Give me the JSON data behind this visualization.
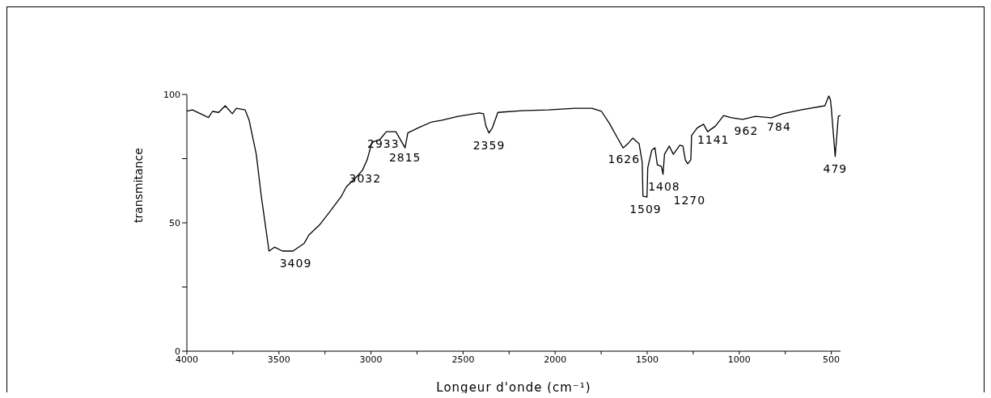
{
  "chart_data": {
    "type": "line",
    "xlabel": "Longeur d'onde (cm⁻¹)",
    "ylabel": "transmitance",
    "xlim": [
      4000,
      450
    ],
    "xticks": [
      4000,
      {
        "value": 3750,
        "label": null
      },
      3500,
      {
        "value": 3250,
        "label": null
      },
      3000,
      {
        "value": 2750,
        "label": null
      },
      2500,
      {
        "value": 2250,
        "label": null
      },
      2000,
      {
        "value": 1750,
        "label": null
      },
      1500,
      {
        "value": 1250,
        "label": null
      },
      1000,
      {
        "value": 750,
        "label": null
      },
      500
    ],
    "ylim": [
      0,
      100
    ],
    "yticks": [
      0,
      {
        "value": 25,
        "label": null
      },
      50,
      {
        "value": 75,
        "label": null
      },
      100
    ],
    "series": [
      {
        "color": "#000000",
        "x": [
          4000,
          3970,
          3926,
          3883,
          3861,
          3827,
          3792,
          3753,
          3731,
          3684,
          3662,
          3623,
          3597,
          3554,
          3524,
          3480,
          3424,
          3363,
          3337,
          3277,
          3220,
          3164,
          3134,
          3077,
          3047,
          3021,
          2995,
          2952,
          2917,
          2865,
          2815,
          2800,
          2744,
          2670,
          2614,
          2527,
          2411,
          2389,
          2376,
          2359,
          2341,
          2311,
          2181,
          2038,
          1891,
          1800,
          1748,
          1705,
          1661,
          1631,
          1605,
          1579,
          1544,
          1527,
          1523,
          1501,
          1497,
          1475,
          1458,
          1445,
          1423,
          1414,
          1406,
          1380,
          1358,
          1323,
          1306,
          1293,
          1280,
          1263,
          1259,
          1228,
          1194,
          1172,
          1129,
          1085,
          1042,
          982,
          912,
          825,
          765,
          665,
          535,
          514,
          505,
          500,
          479,
          462,
          452
        ],
        "values": [
          93.5,
          94,
          92.5,
          91,
          93.4,
          93,
          95.6,
          92.5,
          94.6,
          94,
          90,
          76.7,
          61,
          39,
          40.5,
          39,
          39,
          42,
          45.3,
          49.4,
          54.7,
          60,
          64,
          68,
          70.4,
          74.5,
          81.4,
          82.4,
          85.5,
          85.5,
          79.2,
          85,
          87,
          89.3,
          90,
          91.5,
          92.8,
          92.5,
          87.7,
          85,
          87,
          93,
          93.7,
          94,
          94.6,
          94.6,
          93.4,
          88.7,
          83,
          79.2,
          80.8,
          83,
          80.8,
          73.6,
          60.4,
          60,
          71.4,
          78.3,
          79.2,
          72.6,
          72,
          68.9,
          76.7,
          79.9,
          76.7,
          80.2,
          79.9,
          74.5,
          73,
          74.5,
          84,
          87,
          88.4,
          85.5,
          87.7,
          91.8,
          90.9,
          90.3,
          91.5,
          90.9,
          92.5,
          94,
          95.6,
          99.4,
          98,
          94.6,
          75.8,
          91.5,
          91.8
        ]
      }
    ],
    "annotations": [
      {
        "text": "3409",
        "x": 3409,
        "y": 39
      },
      {
        "text": "3032",
        "x": 3032,
        "y": 72
      },
      {
        "text": "2933",
        "x": 2933,
        "y": 85.5
      },
      {
        "text": "2815",
        "x": 2815,
        "y": 85
      },
      {
        "text": "2359",
        "x": 2359,
        "y": 85
      },
      {
        "text": "1626",
        "x": 1626,
        "y": 79.5
      },
      {
        "text": "1509",
        "x": 1509,
        "y": 60
      },
      {
        "text": "1408",
        "x": 1408,
        "y": 69
      },
      {
        "text": "1270",
        "x": 1270,
        "y": 73
      },
      {
        "text": "1141",
        "x": 1141,
        "y": 87
      },
      {
        "text": "962",
        "x": 962,
        "y": 90.5
      },
      {
        "text": "784",
        "x": 784,
        "y": 92
      },
      {
        "text": "479",
        "x": 479,
        "y": 75.8
      }
    ]
  }
}
